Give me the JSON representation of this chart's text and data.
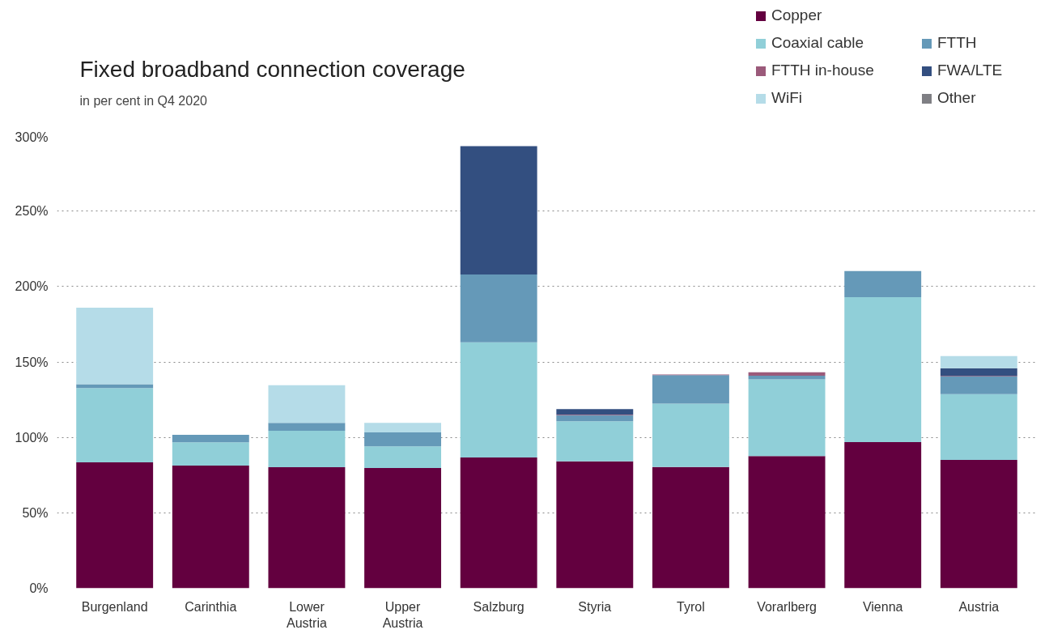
{
  "chart_data": {
    "type": "bar",
    "stacked": true,
    "title": "Fixed broadband connection coverage",
    "subtitle": "in per cent in Q4 2020",
    "categories": [
      "Burgenland",
      "Carinthia",
      "Lower Austria",
      "Upper Austria",
      "Salzburg",
      "Styria",
      "Tyrol",
      "Vorarlberg",
      "Vienna",
      "Austria"
    ],
    "series": [
      {
        "name": "Copper",
        "color": "#63003f",
        "values": [
          83.4,
          81.3,
          80.2,
          79.7,
          86.7,
          84.1,
          80.3,
          87.6,
          96.9,
          85.1
        ]
      },
      {
        "name": "Coaxial cable",
        "color": "#90cfd8",
        "values": [
          49.3,
          15.4,
          24.2,
          14.4,
          76.3,
          26.6,
          42.1,
          50.8,
          96.0,
          43.6
        ]
      },
      {
        "name": "FTTH",
        "color": "#6599b8",
        "values": [
          2.6,
          5.0,
          5.2,
          9.2,
          45.0,
          4.0,
          18.9,
          2.5,
          17.3,
          11.6
        ]
      },
      {
        "name": "FTTH in-house",
        "color": "#9b5a7a",
        "values": [
          null,
          null,
          null,
          null,
          null,
          0.4,
          0.4,
          2.3,
          null,
          0.4
        ]
      },
      {
        "name": "FWA/LTE",
        "color": "#334f80",
        "values": [
          null,
          null,
          null,
          null,
          85.0,
          3.6,
          null,
          null,
          null,
          5.2
        ]
      },
      {
        "name": "WiFi",
        "color": "#b5dce8",
        "values": [
          50.7,
          null,
          25.0,
          6.3,
          null,
          null,
          null,
          null,
          null,
          8.0
        ]
      },
      {
        "name": "Other",
        "color": "#7f7f84",
        "values": [
          null,
          null,
          null,
          null,
          null,
          null,
          null,
          null,
          null,
          null
        ]
      }
    ],
    "ylim": [
      0,
      300
    ],
    "yticks": [
      {
        "value": 0,
        "label": "0%"
      },
      {
        "value": 50,
        "label": "50%"
      },
      {
        "value": 100,
        "label": "100%"
      },
      {
        "value": 150,
        "label": "150%"
      },
      {
        "value": 200,
        "label": "200%"
      },
      {
        "value": 250,
        "label": "250%"
      },
      {
        "value": 300,
        "label": "300%"
      }
    ],
    "grid": "y",
    "legend": "top right"
  }
}
